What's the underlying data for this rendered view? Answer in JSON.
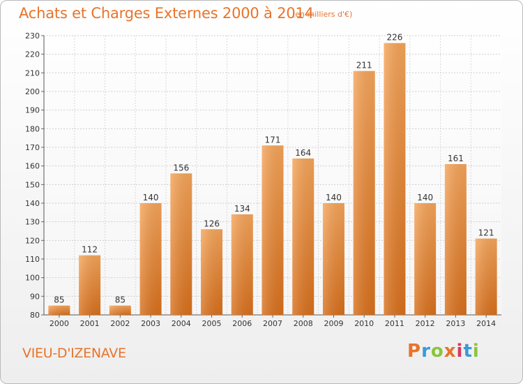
{
  "header": {
    "title": "Achats et Charges Externes 2000 à 2014",
    "subtitle": "(en milliers d'€)"
  },
  "footer": {
    "place": "VIEU-D'IZENAVE",
    "logo_text": "Proxiti",
    "logo_colors": [
      "#e8732a",
      "#3a9ad9",
      "#8bc43f",
      "#e8732a",
      "#d63a5b",
      "#3a9ad9",
      "#8bc43f"
    ]
  },
  "colors": {
    "bar_top": "#f6a55a",
    "bar_bottom": "#d9701c",
    "accent": "#e8732a"
  },
  "chart_data": {
    "type": "bar",
    "title": "Achats et Charges Externes 2000 à 2014",
    "xlabel": "",
    "ylabel": "",
    "categories": [
      "2000",
      "2001",
      "2002",
      "2003",
      "2004",
      "2005",
      "2006",
      "2007",
      "2008",
      "2009",
      "2010",
      "2011",
      "2012",
      "2013",
      "2014"
    ],
    "values": [
      85,
      112,
      85,
      140,
      156,
      126,
      134,
      171,
      164,
      140,
      211,
      226,
      140,
      161,
      121
    ],
    "ylim": [
      80,
      230
    ],
    "yticks": [
      80,
      90,
      100,
      110,
      120,
      130,
      140,
      150,
      160,
      170,
      180,
      190,
      200,
      210,
      220,
      230
    ],
    "grid": true
  }
}
